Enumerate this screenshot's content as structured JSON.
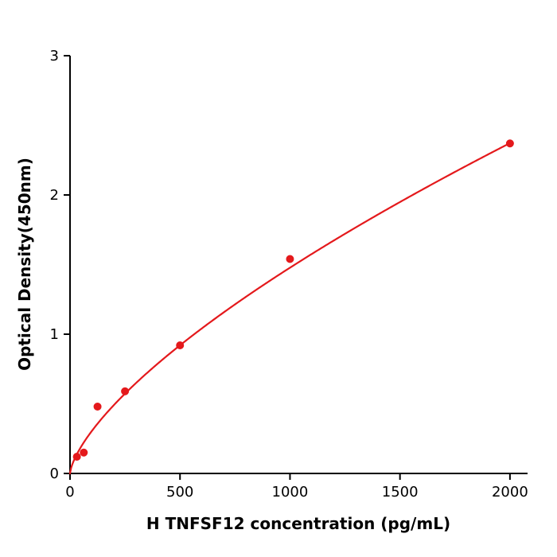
{
  "figure": {
    "background": "#ffffff"
  },
  "chart_data": {
    "type": "scatter",
    "title": "",
    "xlabel": "H  TNFSF12 concentration (pg/mL)",
    "ylabel": "Optical Density(450nm)",
    "x": [
      31.25,
      62.5,
      125,
      250,
      500,
      1000,
      2000
    ],
    "y": [
      0.12,
      0.15,
      0.48,
      0.59,
      0.92,
      1.54,
      2.37
    ],
    "xlim": [
      0,
      2080
    ],
    "ylim": [
      0,
      3
    ],
    "xticks": [
      0,
      500,
      1000,
      1500,
      2000
    ],
    "yticks": [
      0,
      1,
      2,
      3
    ],
    "grid": false,
    "legend": "none",
    "point_color": "#e4191c",
    "curve_color": "#e4191c",
    "axis_color": "#000000",
    "point_radius": 5,
    "fit": {
      "type": "power",
      "a": 0.0132,
      "b": 0.683
    }
  }
}
